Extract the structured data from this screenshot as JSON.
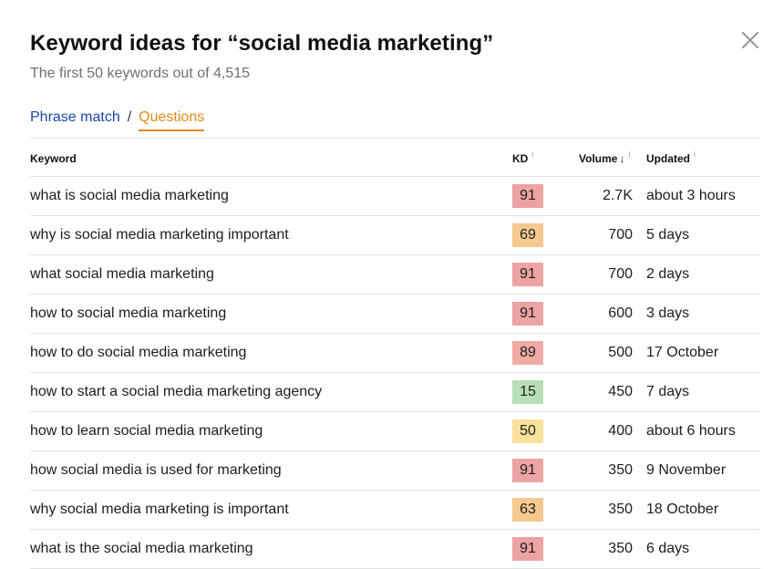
{
  "modal": {
    "title": "Keyword ideas for “social media marketing”",
    "subtitle": "The first 50 keywords out of 4,515",
    "close_icon": "close-icon"
  },
  "tabs": {
    "phrase_match": "Phrase match",
    "separator": "/",
    "questions": "Questions",
    "active": "questions"
  },
  "table": {
    "headers": {
      "keyword": "Keyword",
      "kd": "KD",
      "volume": "Volume",
      "updated": "Updated",
      "info_glyph": "i",
      "sort_glyph": "↓"
    },
    "kd_colors": {
      "hard": "#eda3a3",
      "very_hard": "#f0aca4",
      "medium": "#f6c98f",
      "easy": "#f8e29b",
      "very_easy": "#b8e0b8"
    },
    "rows": [
      {
        "keyword": "what is social media marketing",
        "kd": "91",
        "kd_color": "#eda3a3",
        "volume": "2.7K",
        "updated": "about 3 hours"
      },
      {
        "keyword": "why is social media marketing important",
        "kd": "69",
        "kd_color": "#f6c98f",
        "volume": "700",
        "updated": "5 days"
      },
      {
        "keyword": "what social media marketing",
        "kd": "91",
        "kd_color": "#eda3a3",
        "volume": "700",
        "updated": "2 days"
      },
      {
        "keyword": "how to social media marketing",
        "kd": "91",
        "kd_color": "#eda3a3",
        "volume": "600",
        "updated": "3 days"
      },
      {
        "keyword": "how to do social media marketing",
        "kd": "89",
        "kd_color": "#f0aca4",
        "volume": "500",
        "updated": "17 October"
      },
      {
        "keyword": "how to start a social media marketing agency",
        "kd": "15",
        "kd_color": "#b8e0b8",
        "volume": "450",
        "updated": "7 days"
      },
      {
        "keyword": "how to learn social media marketing",
        "kd": "50",
        "kd_color": "#f8e29b",
        "volume": "400",
        "updated": "about 6 hours"
      },
      {
        "keyword": "how social media is used for marketing",
        "kd": "91",
        "kd_color": "#eda3a3",
        "volume": "350",
        "updated": "9 November"
      },
      {
        "keyword": "why social media marketing is important",
        "kd": "63",
        "kd_color": "#f6c98f",
        "volume": "350",
        "updated": "18 October"
      },
      {
        "keyword": "what is the social media marketing",
        "kd": "91",
        "kd_color": "#eda3a3",
        "volume": "350",
        "updated": "6 days"
      }
    ]
  }
}
